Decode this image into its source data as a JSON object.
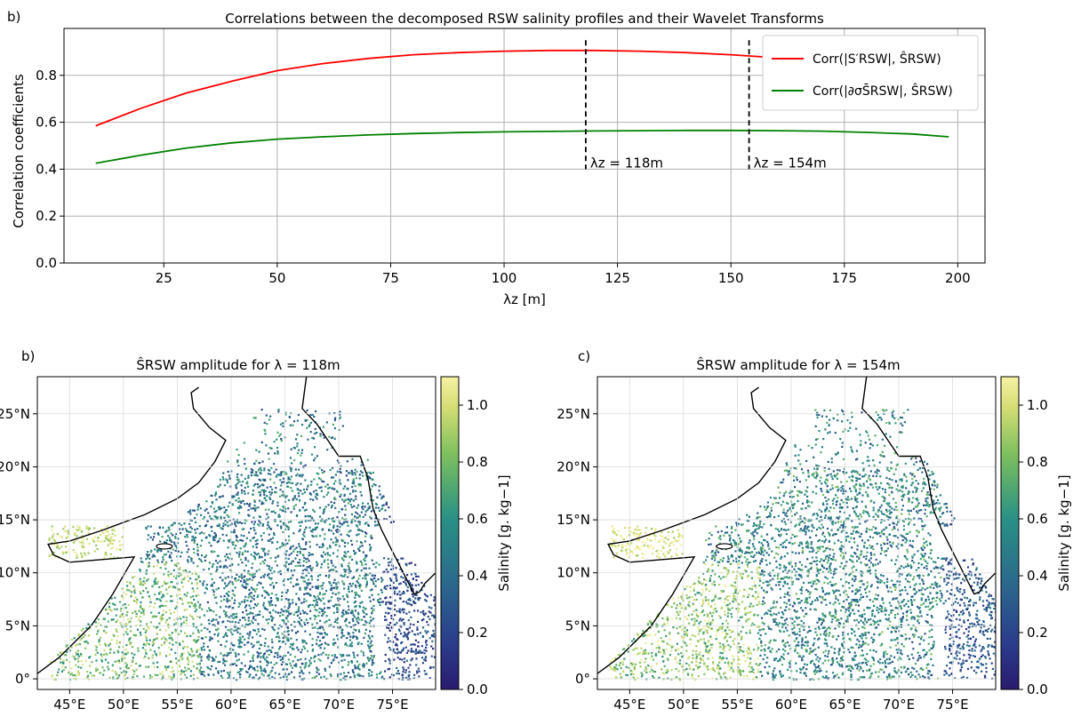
{
  "chart_data": [
    {
      "panel": "b)",
      "type": "line",
      "title": "Correlations between the decomposed RSW salinity profiles and their Wavelet Transforms",
      "xlabel": "λz [m]",
      "ylabel": "Correlation coefficients",
      "xlim": [
        3,
        206
      ],
      "ylim": [
        0,
        1.0
      ],
      "xticks": [
        "25",
        "50",
        "75",
        "100",
        "125",
        "150",
        "175",
        "200"
      ],
      "yticks": [
        "0.0",
        "0.2",
        "0.4",
        "0.6",
        "0.8"
      ],
      "grid": true,
      "legend_position": "upper-right",
      "series": [
        {
          "name": "Corr(|S′RSW|, ŜRSW)",
          "color": "#ff0000",
          "x": [
            10,
            20,
            30,
            40,
            50,
            60,
            70,
            80,
            90,
            100,
            110,
            120,
            130,
            140,
            150,
            160,
            170,
            180,
            190,
            198
          ],
          "y": [
            0.585,
            0.66,
            0.725,
            0.775,
            0.82,
            0.85,
            0.872,
            0.888,
            0.897,
            0.903,
            0.906,
            0.906,
            0.903,
            0.897,
            0.888,
            0.875,
            0.86,
            0.84,
            0.82,
            0.8
          ]
        },
        {
          "name": "Corr(|∂σS̄RSW|, ŜRSW)",
          "color": "#008000",
          "x": [
            10,
            20,
            30,
            40,
            50,
            60,
            70,
            80,
            90,
            100,
            110,
            120,
            130,
            140,
            150,
            160,
            170,
            180,
            190,
            198
          ],
          "y": [
            0.425,
            0.46,
            0.49,
            0.512,
            0.528,
            0.538,
            0.546,
            0.552,
            0.556,
            0.559,
            0.561,
            0.563,
            0.564,
            0.565,
            0.565,
            0.564,
            0.562,
            0.557,
            0.55,
            0.538
          ]
        }
      ],
      "annotations": [
        {
          "x": 118,
          "y": [
            0.4,
            0.95
          ],
          "style": "dashed",
          "label": "λz = 118m"
        },
        {
          "x": 154,
          "y": [
            0.4,
            0.95
          ],
          "style": "dashed",
          "label": "λz = 154m"
        }
      ]
    },
    {
      "panel": "b)",
      "type": "scatter",
      "title": "ŜRSW amplitude for λ = 118m",
      "xticks": [
        "45°E",
        "50°E",
        "55°E",
        "60°E",
        "65°E",
        "70°E",
        "75°E"
      ],
      "yticks": [
        "0°",
        "5°N",
        "10°N",
        "15°N",
        "20°N",
        "25°N"
      ],
      "colorbar": {
        "label": "Salinity [g. kg−1]",
        "ticks": [
          "0.0",
          "0.2",
          "0.4",
          "0.6",
          "0.8",
          "1.0"
        ],
        "range": [
          0,
          1.1
        ],
        "colormap": "viridis-yellow"
      }
    },
    {
      "panel": "c)",
      "type": "scatter",
      "title": "ŜRSW amplitude for λ = 154m",
      "xticks": [
        "45°E",
        "50°E",
        "55°E",
        "60°E",
        "65°E",
        "70°E",
        "75°E"
      ],
      "yticks": [
        "0°",
        "5°N",
        "10°N",
        "15°N",
        "20°N",
        "25°N"
      ],
      "colorbar": {
        "label": "Salinity [g. kg−1]",
        "ticks": [
          "0.0",
          "0.2",
          "0.4",
          "0.6",
          "0.8",
          "1.0"
        ],
        "range": [
          0,
          1.1
        ],
        "colormap": "viridis-yellow"
      }
    }
  ]
}
